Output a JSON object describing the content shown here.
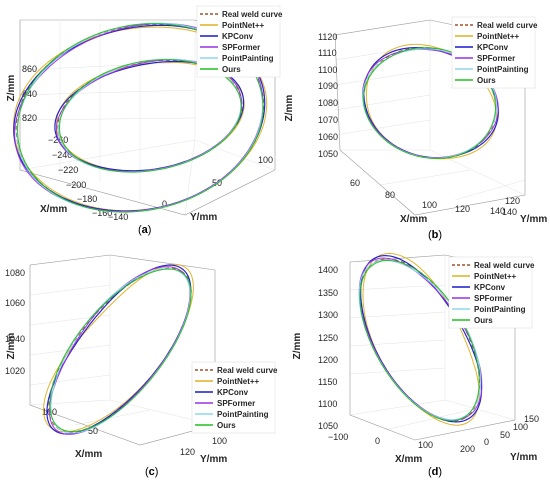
{
  "figure": {
    "panel_labels": [
      "(a)",
      "(b)",
      "(c)",
      "(d)"
    ],
    "series_styles": [
      {
        "name": "Real weld curve",
        "color": "#a0522d",
        "dash": true
      },
      {
        "name": "PointNet++",
        "color": "#e0b020",
        "dash": false
      },
      {
        "name": "KPConv",
        "color": "#1a1acc",
        "dash": false
      },
      {
        "name": "SPFormer",
        "color": "#9b30e0",
        "dash": false
      },
      {
        "name": "PointPainting",
        "color": "#8fd5ee",
        "dash": false
      },
      {
        "name": "Ours",
        "color": "#20c020",
        "dash": false
      }
    ]
  },
  "chart_data": [
    {
      "type": "line",
      "panel": "(a)",
      "zlabel": "Z/mm",
      "xlabel": "X/mm",
      "ylabel": "Y/mm",
      "z_ticks": [
        "860",
        "840",
        "820"
      ],
      "x_ticks": [
        "−260",
        "−240",
        "−220",
        "−200",
        "−180",
        "−160",
        "−140"
      ],
      "y_ticks": [
        "0",
        "50",
        "100"
      ],
      "legend": [
        "Real weld curve",
        "PointNet++",
        "KPConv",
        "SPFormer",
        "PointPainting",
        "Ours"
      ],
      "series": [
        {
          "name": "Real weld curve"
        },
        {
          "name": "PointNet++"
        },
        {
          "name": "KPConv"
        },
        {
          "name": "SPFormer"
        },
        {
          "name": "PointPainting"
        },
        {
          "name": "Ours"
        }
      ]
    },
    {
      "type": "line",
      "panel": "(b)",
      "zlabel": "Z/mm",
      "xlabel": "X/mm",
      "ylabel": "Y/mm",
      "z_ticks": [
        "1120",
        "1110",
        "1100",
        "1090",
        "1080",
        "1070",
        "1060",
        "1050"
      ],
      "x_ticks": [
        "60",
        "80",
        "100",
        "120",
        "140"
      ],
      "y_ticks": [
        "120",
        "140"
      ],
      "legend": [
        "Real weld curve",
        "PointNet++",
        "KPConv",
        "SPFormer",
        "PointPainting",
        "Ours"
      ],
      "series": [
        {
          "name": "Real weld curve"
        },
        {
          "name": "PointNet++"
        },
        {
          "name": "KPConv"
        },
        {
          "name": "SPFormer"
        },
        {
          "name": "PointPainting"
        },
        {
          "name": "Ours"
        }
      ]
    },
    {
      "type": "line",
      "panel": "(c)",
      "zlabel": "Z/mm",
      "xlabel": "X/mm",
      "ylabel": "Y/mm",
      "z_ticks": [
        "1080",
        "1060",
        "1040",
        "1020"
      ],
      "x_ticks": [
        "100",
        "50"
      ],
      "y_ticks": [
        "120",
        "100",
        "80"
      ],
      "legend": [
        "Real weld curve",
        "PointNet++",
        "KPConv",
        "SPFormer",
        "PointPainting",
        "Ours"
      ],
      "series": [
        {
          "name": "Real weld curve"
        },
        {
          "name": "PointNet++"
        },
        {
          "name": "KPConv"
        },
        {
          "name": "SPFormer"
        },
        {
          "name": "PointPainting"
        },
        {
          "name": "Ours"
        }
      ]
    },
    {
      "type": "line",
      "panel": "(d)",
      "zlabel": "Z/mm",
      "xlabel": "X/mm",
      "ylabel": "Y/mm",
      "z_ticks": [
        "1400",
        "1350",
        "1300",
        "1250",
        "1200",
        "1150",
        "1100",
        "1050"
      ],
      "x_ticks": [
        "−100",
        "0",
        "100",
        "200"
      ],
      "y_ticks": [
        "0",
        "50",
        "100",
        "150"
      ],
      "legend": [
        "Real weld curve",
        "PointNet++",
        "KPConv",
        "SPFormer",
        "PointPainting",
        "Ours"
      ],
      "series": [
        {
          "name": "Real weld curve"
        },
        {
          "name": "PointNet++"
        },
        {
          "name": "KPConv"
        },
        {
          "name": "SPFormer"
        },
        {
          "name": "PointPainting"
        },
        {
          "name": "Ours"
        }
      ]
    }
  ]
}
